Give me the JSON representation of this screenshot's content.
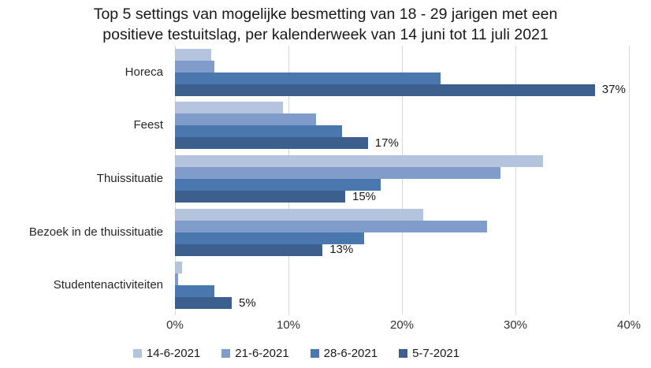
{
  "title_line1": "Top 5 settings van mogelijke besmetting van 18 - 29 jarigen met een",
  "title_line2": "positieve testuitslag, per kalenderweek van 14 juni tot 11 juli 2021",
  "colors": {
    "background": "#ffffff",
    "gridline": "#d9d9d9",
    "text": "#262626"
  },
  "chart_data": {
    "type": "bar",
    "orientation": "horizontal",
    "title": "Top 5 settings van mogelijke besmetting van 18 - 29 jarigen met een positieve testuitslag, per kalenderweek van 14 juni tot 11 juli 2021",
    "categories": [
      "Horeca",
      "Feest",
      "Thuissituatie",
      "Bezoek in de thuissituatie",
      "Studentenactiviteiten"
    ],
    "series": [
      {
        "name": "14-6-2021",
        "color": "#b4c3de",
        "values": [
          3.2,
          9.5,
          32.4,
          21.9,
          0.6
        ]
      },
      {
        "name": "21-6-2021",
        "color": "#7f9cca",
        "values": [
          3.5,
          12.4,
          28.7,
          27.5,
          0.25
        ]
      },
      {
        "name": "28-6-2021",
        "color": "#4a77ae",
        "values": [
          23.4,
          14.7,
          18.1,
          16.7,
          3.5
        ]
      },
      {
        "name": "5-7-2021",
        "color": "#3c5f8d",
        "values": [
          37,
          17,
          15,
          13,
          5
        ]
      }
    ],
    "data_labels": {
      "series": "5-7-2021",
      "values": [
        "37%",
        "17%",
        "15%",
        "13%",
        "5%"
      ]
    },
    "x_ticks": [
      "0%",
      "10%",
      "20%",
      "30%",
      "40%"
    ],
    "xlim": [
      0,
      40
    ],
    "grid": "vertical",
    "legend_position": "bottom"
  }
}
